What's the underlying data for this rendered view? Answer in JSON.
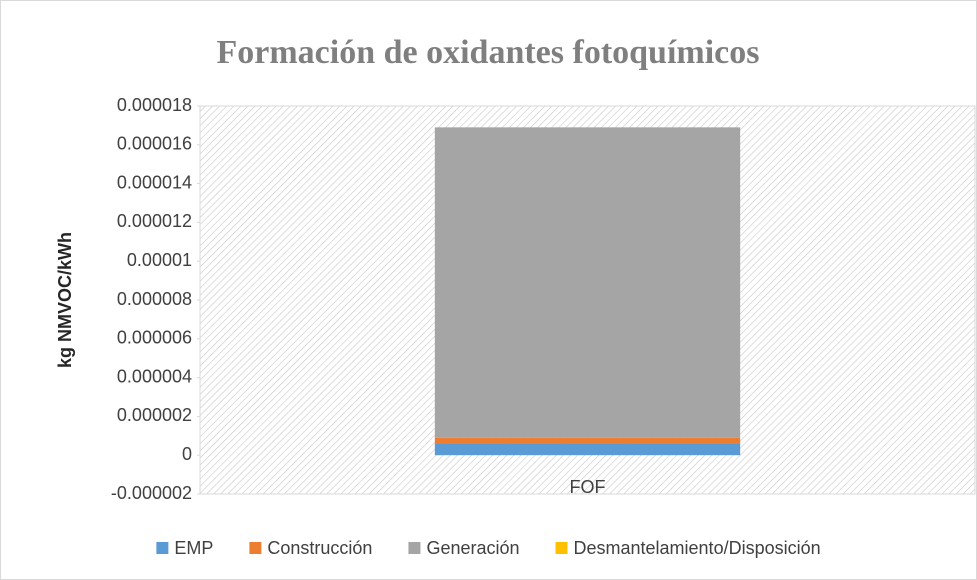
{
  "chart_data": {
    "type": "stacked_bar",
    "title": "Formación de oxidantes fotoquímicos",
    "y_label": "kg NMVOC/kWh",
    "categories": [
      "FOF"
    ],
    "series": [
      {
        "name": "EMP",
        "color": "#5b9bd5",
        "values": [
          6e-07
        ]
      },
      {
        "name": "Construcción",
        "color": "#ed7d31",
        "values": [
          3e-07
        ]
      },
      {
        "name": "Generación",
        "color": "#a5a5a5",
        "values": [
          1.6e-05
        ]
      },
      {
        "name": "Desmantelamiento/Disposición",
        "color": "#ffc000",
        "values": [
          0
        ]
      }
    ],
    "ylim": [
      -2e-06,
      1.8e-05
    ],
    "yticks": [
      -2e-06,
      0,
      2e-06,
      4e-06,
      6e-06,
      8e-06,
      1e-05,
      1.2e-05,
      1.4e-05,
      1.6e-05,
      1.8e-05
    ],
    "legend": "bottom"
  }
}
